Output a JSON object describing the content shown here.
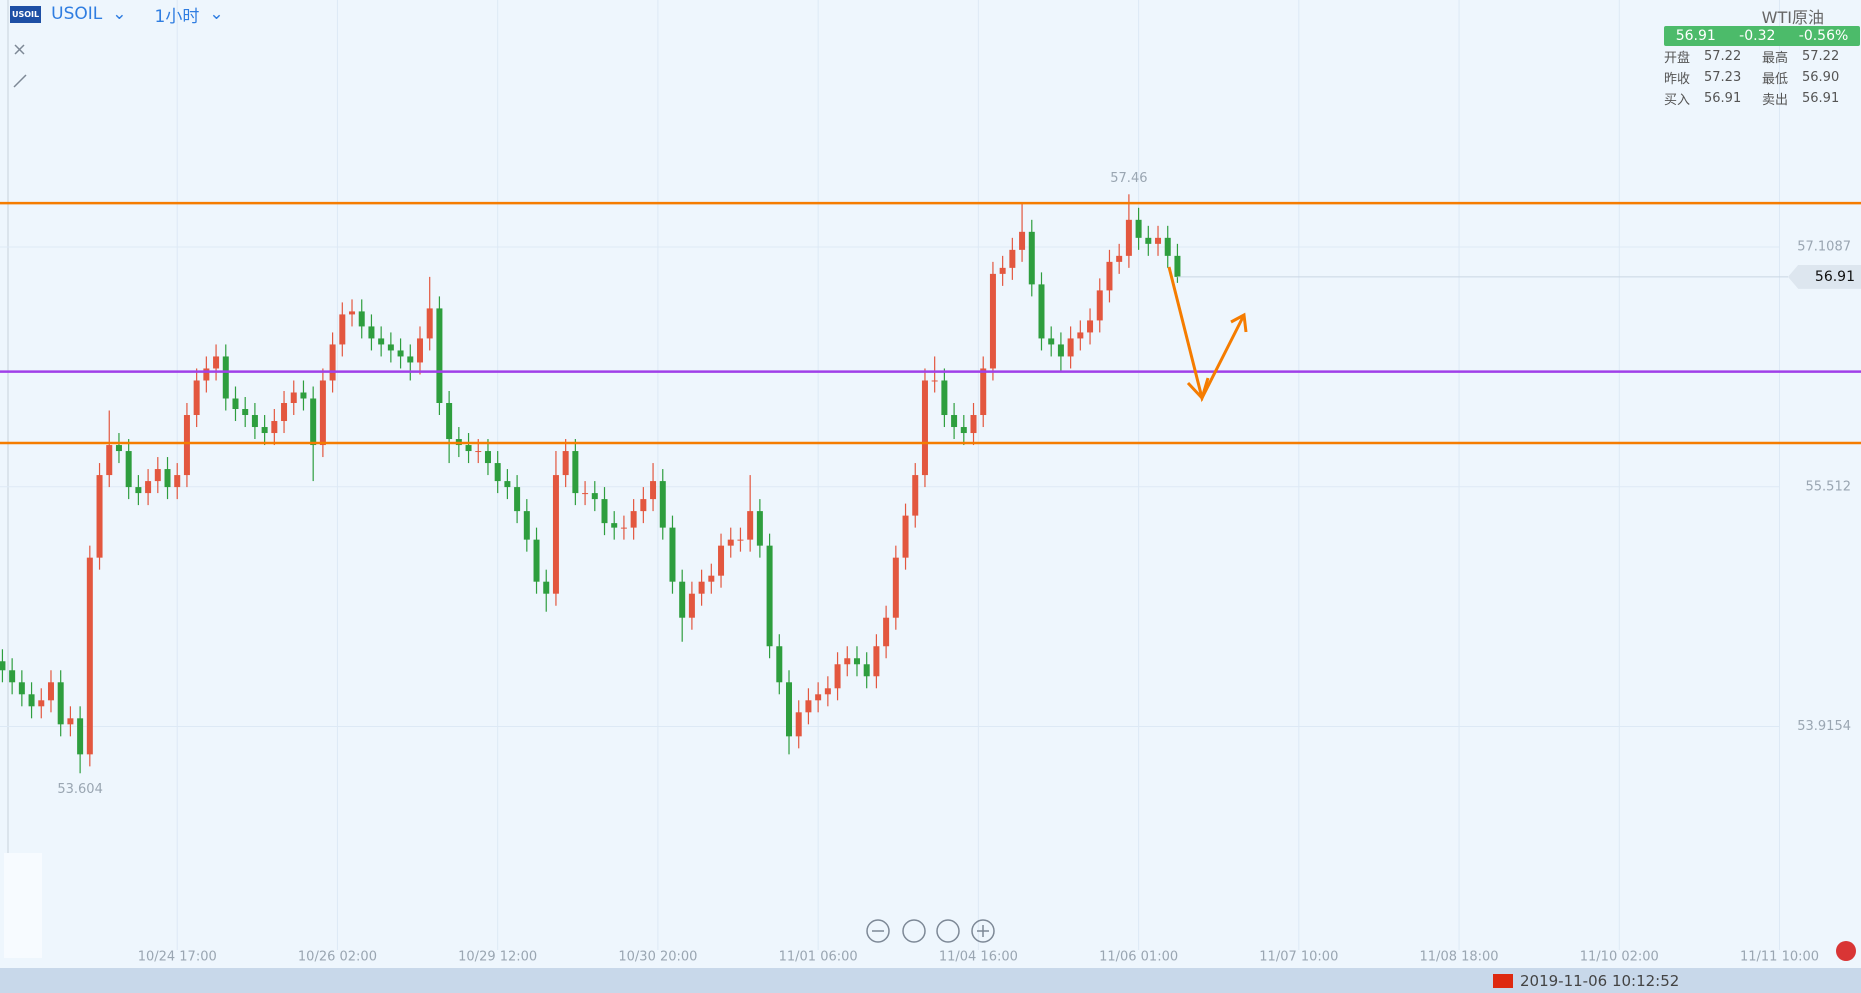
{
  "ui": {
    "symbol": "USOIL",
    "timeframe": "1小时",
    "datetime": "2019-11-06 10:12:52",
    "quote": {
      "name": "WTI原油",
      "price": "56.91",
      "change": "-0.32",
      "change_pct": "-0.56%",
      "rows": [
        [
          "开盘",
          "57.22",
          "最高",
          "57.22"
        ],
        [
          "昨收",
          "57.23",
          "最低",
          "56.90"
        ],
        [
          "买入",
          "56.91",
          "卖出",
          "56.91"
        ]
      ]
    }
  },
  "chart_data": {
    "type": "candlestick",
    "up_color": "#e3573f",
    "down_color": "#2e9e3e",
    "grid": true,
    "xlim": [
      -0.25,
      183.05
    ],
    "ylim": [
      52.427,
      58.754
    ],
    "yticks": [
      57.1087,
      55.512,
      53.9154
    ],
    "xticks": [
      {
        "value": 18,
        "label": "10/24 17:00"
      },
      {
        "value": 34.5,
        "label": "10/26 02:00"
      },
      {
        "value": 51,
        "label": "10/29 12:00"
      },
      {
        "value": 67.5,
        "label": "10/30 20:00"
      },
      {
        "value": 84,
        "label": "11/01 06:00"
      },
      {
        "value": 100.5,
        "label": "11/04 16:00"
      },
      {
        "value": 117,
        "label": "11/06 01:00"
      },
      {
        "value": 133.5,
        "label": "11/07 10:00"
      },
      {
        "value": 150,
        "label": "11/08 18:00"
      },
      {
        "value": 166.5,
        "label": "11/10 02:00"
      },
      {
        "value": 183,
        "label": "11/11 10:00"
      }
    ],
    "levels": [
      {
        "value": 57.401,
        "color": "#f57c00"
      },
      {
        "value": 56.279,
        "color": "#a040e8"
      },
      {
        "value": 55.804,
        "color": "#f57c00"
      }
    ],
    "extremes": {
      "high": 57.46,
      "high_index": 116,
      "low": 53.604,
      "low_index": 8
    },
    "last_price": 56.91,
    "ohlc": [
      [
        54.35,
        54.43,
        54.21,
        54.29
      ],
      [
        54.29,
        54.37,
        54.13,
        54.21
      ],
      [
        54.21,
        54.29,
        54.05,
        54.13
      ],
      [
        54.13,
        54.21,
        53.97,
        54.05
      ],
      [
        54.05,
        54.17,
        53.97,
        54.09
      ],
      [
        54.09,
        54.29,
        54.01,
        54.21
      ],
      [
        54.21,
        54.29,
        53.85,
        53.93
      ],
      [
        53.93,
        54.05,
        53.85,
        53.97
      ],
      [
        53.97,
        54.05,
        53.604,
        53.73
      ],
      [
        53.73,
        55.12,
        53.65,
        55.04
      ],
      [
        55.04,
        55.67,
        54.96,
        55.59
      ],
      [
        55.59,
        56.02,
        55.51,
        55.79
      ],
      [
        55.79,
        55.87,
        55.67,
        55.75
      ],
      [
        55.75,
        55.83,
        55.43,
        55.51
      ],
      [
        55.51,
        55.59,
        55.39,
        55.47
      ],
      [
        55.47,
        55.63,
        55.39,
        55.55
      ],
      [
        55.55,
        55.71,
        55.47,
        55.63
      ],
      [
        55.63,
        55.71,
        55.43,
        55.51
      ],
      [
        55.51,
        55.67,
        55.43,
        55.59
      ],
      [
        55.59,
        56.07,
        55.51,
        55.99
      ],
      [
        55.99,
        56.3,
        55.91,
        56.22
      ],
      [
        56.22,
        56.38,
        56.14,
        56.3
      ],
      [
        56.3,
        56.46,
        56.22,
        56.38
      ],
      [
        56.38,
        56.46,
        56.02,
        56.1
      ],
      [
        56.1,
        56.18,
        55.95,
        56.03
      ],
      [
        56.03,
        56.11,
        55.91,
        55.99
      ],
      [
        55.99,
        56.07,
        55.83,
        55.91
      ],
      [
        55.91,
        55.99,
        55.79,
        55.87
      ],
      [
        55.87,
        56.03,
        55.79,
        55.95
      ],
      [
        55.95,
        56.15,
        55.87,
        56.07
      ],
      [
        56.07,
        56.22,
        55.99,
        56.14
      ],
      [
        56.14,
        56.22,
        56.02,
        56.1
      ],
      [
        56.1,
        56.18,
        55.55,
        55.79
      ],
      [
        55.79,
        56.3,
        55.71,
        56.22
      ],
      [
        56.22,
        56.54,
        56.14,
        56.46
      ],
      [
        56.46,
        56.74,
        56.38,
        56.66
      ],
      [
        56.66,
        56.76,
        56.58,
        56.68
      ],
      [
        56.68,
        56.76,
        56.5,
        56.58
      ],
      [
        56.58,
        56.66,
        56.42,
        56.5
      ],
      [
        56.5,
        56.58,
        56.38,
        56.46
      ],
      [
        56.46,
        56.54,
        56.34,
        56.42
      ],
      [
        56.42,
        56.5,
        56.3,
        56.38
      ],
      [
        56.38,
        56.46,
        56.22,
        56.34
      ],
      [
        56.34,
        56.58,
        56.26,
        56.5
      ],
      [
        56.5,
        56.91,
        56.42,
        56.7
      ],
      [
        56.7,
        56.78,
        55.99,
        56.07
      ],
      [
        56.07,
        56.15,
        55.67,
        55.83
      ],
      [
        55.83,
        55.91,
        55.71,
        55.79
      ],
      [
        55.79,
        55.87,
        55.67,
        55.75
      ],
      [
        55.75,
        55.83,
        55.67,
        55.75
      ],
      [
        55.75,
        55.83,
        55.59,
        55.67
      ],
      [
        55.67,
        55.75,
        55.47,
        55.55
      ],
      [
        55.55,
        55.63,
        55.43,
        55.51
      ],
      [
        55.51,
        55.59,
        55.27,
        55.35
      ],
      [
        55.35,
        55.43,
        55.08,
        55.16
      ],
      [
        55.16,
        55.24,
        54.8,
        54.88
      ],
      [
        54.88,
        54.96,
        54.68,
        54.8
      ],
      [
        54.8,
        55.75,
        54.72,
        55.59
      ],
      [
        55.59,
        55.83,
        55.51,
        55.75
      ],
      [
        55.75,
        55.83,
        55.39,
        55.47
      ],
      [
        55.47,
        55.55,
        55.39,
        55.47
      ],
      [
        55.47,
        55.55,
        55.35,
        55.43
      ],
      [
        55.43,
        55.51,
        55.19,
        55.27
      ],
      [
        55.27,
        55.35,
        55.16,
        55.24
      ],
      [
        55.24,
        55.32,
        55.16,
        55.24
      ],
      [
        55.24,
        55.43,
        55.16,
        55.35
      ],
      [
        55.35,
        55.51,
        55.27,
        55.43
      ],
      [
        55.43,
        55.67,
        55.35,
        55.55
      ],
      [
        55.55,
        55.63,
        55.16,
        55.24
      ],
      [
        55.24,
        55.32,
        54.8,
        54.88
      ],
      [
        54.88,
        54.96,
        54.48,
        54.64
      ],
      [
        54.64,
        54.88,
        54.56,
        54.8
      ],
      [
        54.8,
        54.96,
        54.72,
        54.88
      ],
      [
        54.88,
        55.0,
        54.8,
        54.92
      ],
      [
        54.92,
        55.2,
        54.84,
        55.12
      ],
      [
        55.12,
        55.24,
        55.04,
        55.16
      ],
      [
        55.16,
        55.24,
        55.08,
        55.16
      ],
      [
        55.16,
        55.59,
        55.08,
        55.35
      ],
      [
        55.35,
        55.43,
        55.04,
        55.12
      ],
      [
        55.12,
        55.2,
        54.37,
        54.45
      ],
      [
        54.45,
        54.53,
        54.13,
        54.21
      ],
      [
        54.21,
        54.29,
        53.73,
        53.85
      ],
      [
        53.85,
        54.09,
        53.77,
        54.01
      ],
      [
        54.01,
        54.17,
        53.93,
        54.09
      ],
      [
        54.09,
        54.21,
        54.01,
        54.13
      ],
      [
        54.13,
        54.25,
        54.05,
        54.17
      ],
      [
        54.17,
        54.41,
        54.09,
        54.33
      ],
      [
        54.33,
        54.45,
        54.25,
        54.37
      ],
      [
        54.37,
        54.45,
        54.25,
        54.33
      ],
      [
        54.33,
        54.41,
        54.17,
        54.25
      ],
      [
        54.25,
        54.53,
        54.17,
        54.45
      ],
      [
        54.45,
        54.72,
        54.37,
        54.64
      ],
      [
        54.64,
        55.12,
        54.56,
        55.04
      ],
      [
        55.04,
        55.4,
        54.96,
        55.32
      ],
      [
        55.32,
        55.67,
        55.24,
        55.59
      ],
      [
        55.59,
        56.3,
        55.51,
        56.22
      ],
      [
        56.22,
        56.38,
        56.14,
        56.22
      ],
      [
        56.22,
        56.3,
        55.91,
        55.99
      ],
      [
        55.99,
        56.07,
        55.83,
        55.91
      ],
      [
        55.91,
        55.99,
        55.79,
        55.87
      ],
      [
        55.87,
        56.07,
        55.79,
        55.99
      ],
      [
        55.99,
        56.38,
        55.91,
        56.3
      ],
      [
        56.3,
        57.01,
        56.22,
        56.93
      ],
      [
        56.93,
        57.05,
        56.85,
        56.97
      ],
      [
        56.97,
        57.17,
        56.89,
        57.09
      ],
      [
        57.09,
        57.4,
        57.01,
        57.21
      ],
      [
        57.21,
        57.29,
        56.78,
        56.86
      ],
      [
        56.86,
        56.94,
        56.42,
        56.5
      ],
      [
        56.5,
        56.58,
        56.38,
        56.46
      ],
      [
        56.46,
        56.54,
        56.28,
        56.38
      ],
      [
        56.38,
        56.58,
        56.3,
        56.5
      ],
      [
        56.5,
        56.62,
        56.42,
        56.54
      ],
      [
        56.54,
        56.7,
        56.46,
        56.62
      ],
      [
        56.62,
        56.9,
        56.54,
        56.82
      ],
      [
        56.82,
        57.09,
        56.74,
        57.01
      ],
      [
        57.01,
        57.13,
        56.93,
        57.05
      ],
      [
        57.05,
        57.46,
        56.97,
        57.29
      ],
      [
        57.29,
        57.37,
        57.09,
        57.17
      ],
      [
        57.17,
        57.25,
        57.05,
        57.13
      ],
      [
        57.13,
        57.25,
        57.05,
        57.17
      ],
      [
        57.17,
        57.25,
        56.97,
        57.05
      ],
      [
        57.05,
        57.13,
        56.87,
        56.91
      ]
    ]
  }
}
